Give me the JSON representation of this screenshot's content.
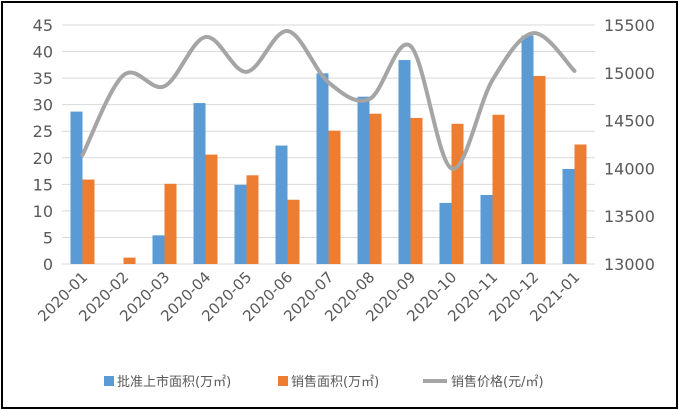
{
  "chart_data": {
    "type": "bar",
    "categories": [
      "2020-01",
      "2020-02",
      "2020-03",
      "2020-04",
      "2020-05",
      "2020-06",
      "2020-07",
      "2020-08",
      "2020-09",
      "2020-10",
      "2020-11",
      "2020-12",
      "2021-01"
    ],
    "series": [
      {
        "name": "批准上市面积(万㎡)",
        "type": "bar",
        "axis": "left",
        "color": "#5B9BD5",
        "values": [
          28.7,
          0,
          5.4,
          30.3,
          14.9,
          22.3,
          35.9,
          31.5,
          38.4,
          11.5,
          13.0,
          43.0,
          17.9
        ]
      },
      {
        "name": "销售面积(万㎡)",
        "type": "bar",
        "axis": "left",
        "color": "#ED7D31",
        "values": [
          15.9,
          1.2,
          15.1,
          20.6,
          16.7,
          12.1,
          25.1,
          28.3,
          27.5,
          26.4,
          28.1,
          35.4,
          22.5
        ]
      },
      {
        "name": "销售价格(元/㎡)",
        "type": "line",
        "axis": "right",
        "color": "#A5A5A5",
        "values": [
          14140,
          14975,
          14860,
          15375,
          15010,
          15437,
          14900,
          14725,
          15280,
          14000,
          14925,
          15415,
          15020
        ]
      }
    ],
    "y_left": {
      "range": [
        0,
        45
      ],
      "ticks": [
        "0",
        "5",
        "10",
        "15",
        "20",
        "25",
        "30",
        "35",
        "40",
        "45"
      ]
    },
    "y_right": {
      "range": [
        13000,
        15500
      ],
      "ticks": [
        "13000",
        "13500",
        "14000",
        "14500",
        "15000",
        "15500"
      ]
    },
    "grid": true,
    "legend": "bottom"
  }
}
